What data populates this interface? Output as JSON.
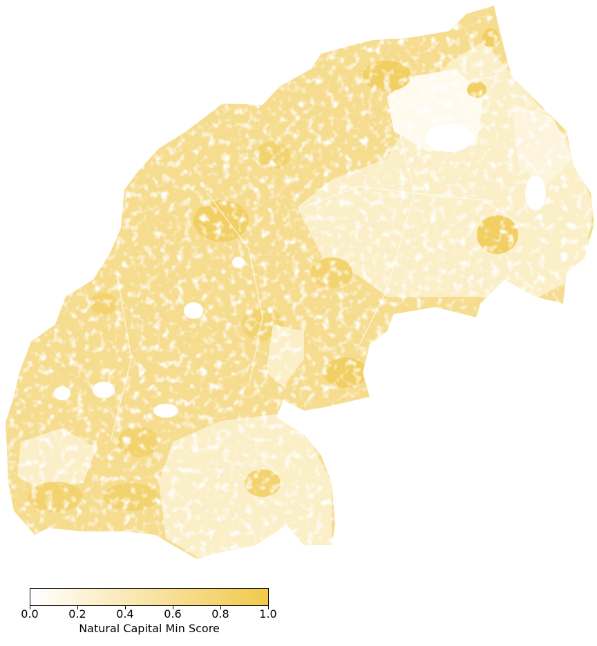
{
  "map": {
    "colormap": {
      "low_color": "#ffffff",
      "high_color": "#f2c94c",
      "region_fill_mid": "#f6dc8e",
      "region_fill_light": "#fbefc8"
    },
    "colorbar": {
      "title": "Natural Capital Min Score",
      "range": [
        0.0,
        1.0
      ],
      "ticks": [
        "0.0",
        "0.2",
        "0.4",
        "0.6",
        "0.8",
        "1.0"
      ]
    }
  }
}
